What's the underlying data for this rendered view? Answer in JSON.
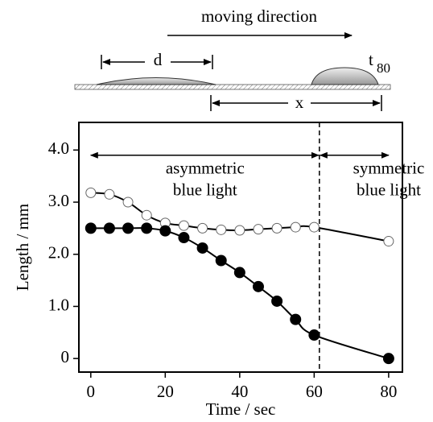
{
  "chart_data": {
    "type": "line",
    "xlabel": "Time / sec",
    "ylabel": "Length / mm",
    "x": [
      0,
      5,
      10,
      15,
      20,
      25,
      30,
      35,
      40,
      45,
      50,
      55,
      60,
      80
    ],
    "series": [
      {
        "marker": "open",
        "color": "#000000",
        "values": [
          3.18,
          3.15,
          3.0,
          2.75,
          2.6,
          2.55,
          2.5,
          2.47,
          2.46,
          2.48,
          2.5,
          2.52,
          2.52,
          2.25
        ]
      },
      {
        "marker": "filled",
        "color": "#000000",
        "values": [
          2.5,
          2.5,
          2.5,
          2.5,
          2.45,
          2.32,
          2.12,
          1.88,
          1.65,
          1.38,
          1.1,
          0.75,
          0.45,
          0
        ]
      }
    ],
    "xlim": [
      -3.2,
      83.7
    ],
    "ylim": [
      -0.26,
      4.53
    ],
    "xticks": [
      0,
      20,
      40,
      60,
      80
    ],
    "yticks": [
      0,
      {
        "value": 1,
        "label": "1.0"
      },
      {
        "value": 2,
        "label": "2.0"
      },
      {
        "value": 3,
        "label": "3.0"
      },
      {
        "value": 4,
        "label": "4.0"
      }
    ],
    "switch_time": 61.4,
    "annotations": [
      {
        "lines": [
          "asymmetric",
          "blue light"
        ]
      },
      {
        "lines": [
          "symmetric",
          "blue light"
        ]
      }
    ]
  },
  "schematic": {
    "direction": "moving direction",
    "d": "d",
    "x": "x",
    "t": "t",
    "t_sub": "80"
  }
}
